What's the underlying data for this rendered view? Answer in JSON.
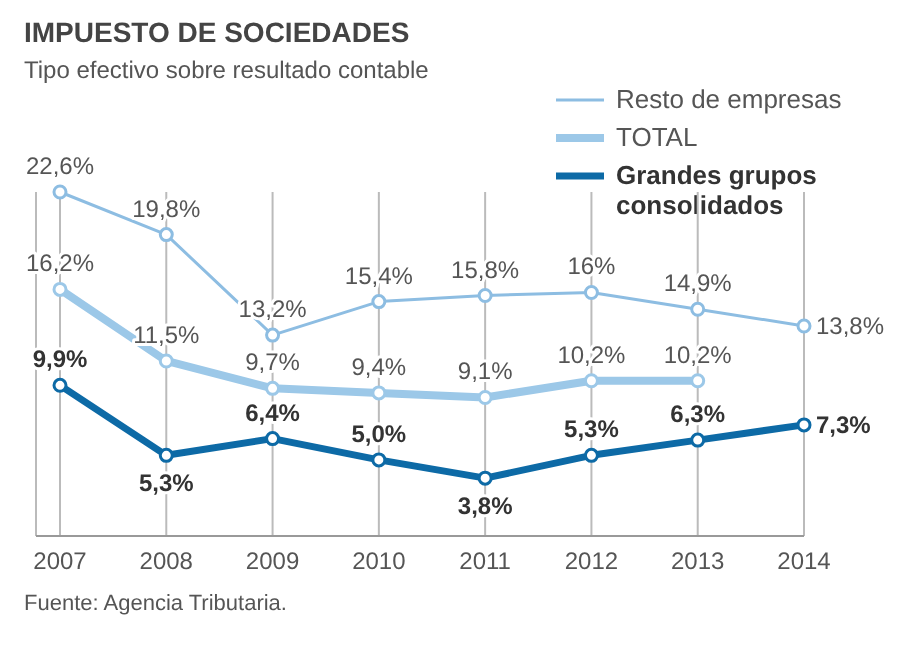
{
  "chart_data": {
    "type": "line",
    "title": "IMPUESTO DE SOCIEDADES",
    "subtitle": "Tipo efectivo sobre resultado contable",
    "annotations": [
      "Fuente: Agencia Tributaria."
    ],
    "categories": [
      "2007",
      "2008",
      "2009",
      "2010",
      "2011",
      "2012",
      "2013",
      "2014"
    ],
    "series": [
      {
        "name": "Resto de empresas",
        "color": "#8dbde2",
        "values": [
          22.6,
          19.8,
          13.2,
          15.4,
          15.8,
          16,
          14.9,
          13.8
        ],
        "value_labels": [
          "22,6%",
          "19,8%",
          "13,2%",
          "15,4%",
          "15,8%",
          "16%",
          "14,9%",
          "13,8%"
        ]
      },
      {
        "name": "TOTAL",
        "color": "#9cc8e8",
        "values": [
          16.2,
          11.5,
          9.7,
          9.4,
          9.1,
          10.2,
          10.2,
          null
        ],
        "value_labels": [
          "16,2%",
          "11,5%",
          "9,7%",
          "9,4%",
          "9,1%",
          "10,2%",
          "10,2%",
          null
        ]
      },
      {
        "name": "Grandes grupos consolidados",
        "color": "#0d6aa6",
        "values": [
          9.9,
          5.3,
          6.4,
          5.0,
          3.8,
          5.3,
          6.3,
          7.3
        ],
        "value_labels": [
          "9,9%",
          "5,3%",
          "6,4%",
          "5,0%",
          "3,8%",
          "5,3%",
          "6,3%",
          "7,3%"
        ]
      }
    ],
    "grid": "x",
    "legend": "top right",
    "marker": "circle",
    "line_style": "solid"
  }
}
